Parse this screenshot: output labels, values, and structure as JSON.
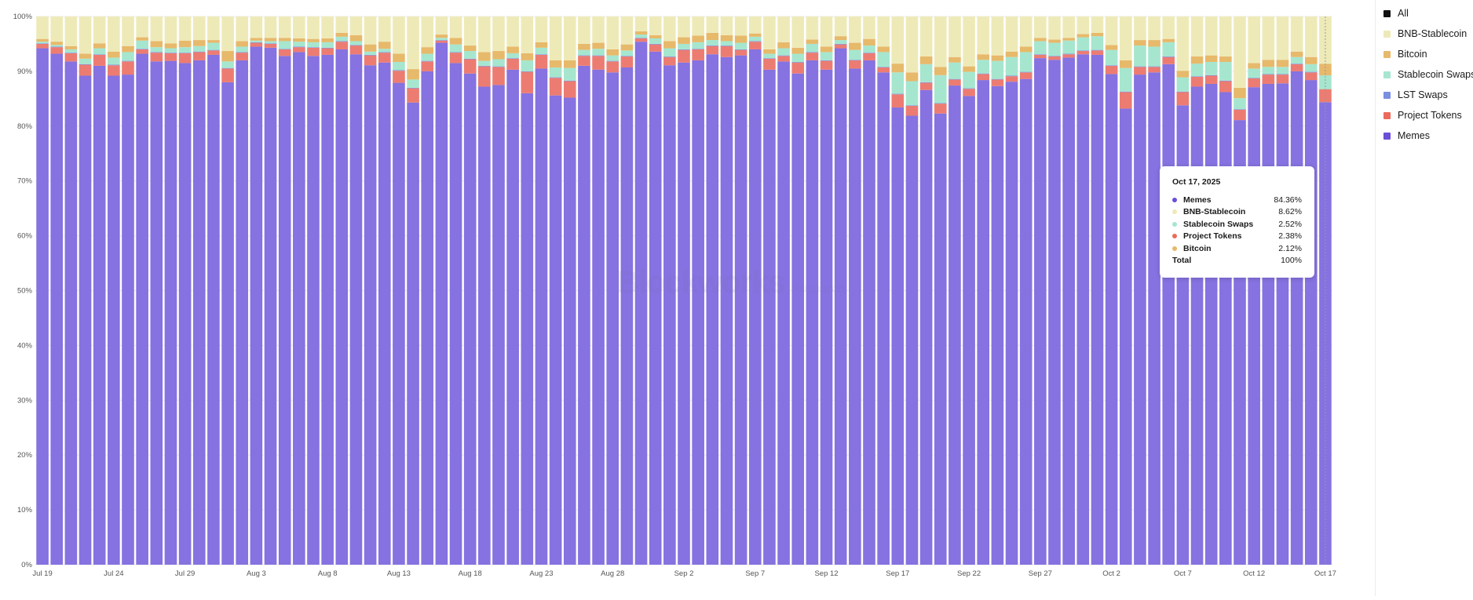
{
  "chart_data": {
    "type": "bar",
    "stacked": true,
    "normalized": true,
    "y_axis": {
      "min": 0,
      "max": 100,
      "ticks": [
        "0%",
        "10%",
        "20%",
        "30%",
        "40%",
        "50%",
        "60%",
        "70%",
        "80%",
        "90%",
        "100%"
      ]
    },
    "x_tick_labels": [
      "Jul 19",
      "Jul 24",
      "Jul 29",
      "Aug 3",
      "Aug 8",
      "Aug 13",
      "Aug 18",
      "Aug 23",
      "Aug 28",
      "Sep 2",
      "Sep 7",
      "Sep 12",
      "Sep 17",
      "Sep 22",
      "Sep 27",
      "Oct 2",
      "Oct 7",
      "Oct 12",
      "Oct 17"
    ],
    "x_tick_every": 5,
    "grid": true,
    "legend_placement": "right",
    "series": [
      {
        "name": "Memes",
        "color": "#8672e0",
        "values": [
          94.2,
          93.2,
          91.8,
          89.2,
          91.0,
          89.2,
          89.4,
          93.2,
          91.8,
          91.9,
          91.5,
          92.0,
          93.0,
          88.0,
          92.0,
          94.5,
          94.3,
          92.8,
          93.5,
          92.8,
          93.0,
          94.0,
          93.1,
          91.1,
          91.6,
          87.9,
          84.3,
          90.0,
          95.2,
          91.5,
          89.6,
          87.2,
          87.5,
          90.3,
          86.0,
          90.5,
          85.6,
          85.2,
          91.1,
          90.3,
          89.8,
          90.7,
          95.4,
          93.6,
          91.1,
          91.6,
          92.0,
          93.2,
          92.6,
          92.9,
          94.0,
          90.3,
          91.8,
          89.6,
          92.0,
          90.3,
          94.2,
          90.5,
          92.0,
          89.8,
          83.4,
          81.9,
          86.6,
          82.3,
          87.4,
          85.5,
          88.4,
          87.3,
          88.1,
          88.6,
          92.4,
          92.1,
          92.5,
          93.1,
          93.0,
          89.5,
          83.2,
          89.4,
          89.8,
          91.3,
          83.8,
          87.2,
          87.7,
          86.2,
          81.1,
          87.1,
          87.7,
          87.8,
          90.0,
          88.4,
          84.4
        ]
      },
      {
        "name": "Project Tokens",
        "color": "#ec7c72",
        "values": [
          0.8,
          1.2,
          1.5,
          2.0,
          2.0,
          1.9,
          2.4,
          0.8,
          1.6,
          1.4,
          1.8,
          1.5,
          0.8,
          2.5,
          1.4,
          0.7,
          0.7,
          1.2,
          0.9,
          1.5,
          1.2,
          1.4,
          1.6,
          1.8,
          1.8,
          2.2,
          2.6,
          1.8,
          0.4,
          1.9,
          2.6,
          3.7,
          3.3,
          2.0,
          3.9,
          2.5,
          3.2,
          3.0,
          1.8,
          2.5,
          2.0,
          2.0,
          0.6,
          1.3,
          1.5,
          2.3,
          2.0,
          1.5,
          2.0,
          1.0,
          1.4,
          2.0,
          1.0,
          2.0,
          1.4,
          1.6,
          0.7,
          1.5,
          1.3,
          0.9,
          2.4,
          1.8,
          1.3,
          1.8,
          1.1,
          1.3,
          1.1,
          1.2,
          1.0,
          1.2,
          0.6,
          0.6,
          0.6,
          0.6,
          0.8,
          1.5,
          3.0,
          1.4,
          1.0,
          1.3,
          2.4,
          1.8,
          1.5,
          2.0,
          1.9,
          1.6,
          1.7,
          1.6,
          1.3,
          1.4,
          2.38
        ]
      },
      {
        "name": "LST Swaps",
        "color": "#7b8fe0",
        "values": [
          0.1,
          0.1,
          0.1,
          0.1,
          0.1,
          0.1,
          0.1,
          0.1,
          0.1,
          0.1,
          0.1,
          0.1,
          0.1,
          0.1,
          0.1,
          0.1,
          0.1,
          0.1,
          0.1,
          0.1,
          0.1,
          0.1,
          0.1,
          0.1,
          0.1,
          0.1,
          0.1,
          0.1,
          0.1,
          0.1,
          0.1,
          0.1,
          0.1,
          0.1,
          0.1,
          0.1,
          0.1,
          0.1,
          0.1,
          0.1,
          0.1,
          0.1,
          0.1,
          0.1,
          0.1,
          0.1,
          0.1,
          0.1,
          0.1,
          0.1,
          0.1,
          0.1,
          0.1,
          0.1,
          0.1,
          0.1,
          0.1,
          0.1,
          0.1,
          0.1,
          0.1,
          0.1,
          0.1,
          0.1,
          0.1,
          0.1,
          0.1,
          0.1,
          0.1,
          0.1,
          0.1,
          0.1,
          0.1,
          0.1,
          0.1,
          0.1,
          0.1,
          0.1,
          0.1,
          0.1,
          0.1,
          0.1,
          0.1,
          0.1,
          0.1,
          0.1,
          0.1,
          0.1,
          0.1,
          0.1,
          0
        ]
      },
      {
        "name": "Stablecoin Swaps",
        "color": "#a6e6cf",
        "values": [
          0.3,
          0.3,
          0.6,
          1.0,
          1.1,
          1.3,
          1.6,
          1.5,
          0.9,
          0.8,
          1.0,
          1.0,
          1.3,
          1.2,
          1.0,
          0.3,
          0.4,
          1.4,
          0.9,
          0.9,
          1.0,
          0.8,
          0.7,
          0.6,
          0.6,
          1.5,
          1.5,
          1.3,
          0.4,
          1.4,
          1.4,
          0.9,
          1.3,
          0.9,
          2.0,
          1.2,
          1.8,
          2.3,
          1.0,
          1.2,
          1.0,
          1.0,
          0.6,
          1.0,
          1.5,
          1.0,
          1.2,
          1.0,
          0.8,
          1.2,
          0.8,
          0.8,
          1.3,
          1.5,
          1.5,
          1.5,
          0.7,
          1.8,
          1.3,
          2.7,
          3.9,
          4.4,
          3.3,
          5.1,
          3.0,
          3.0,
          2.5,
          3.3,
          3.4,
          3.6,
          2.4,
          2.4,
          2.4,
          2.4,
          2.5,
          2.8,
          4.3,
          3.8,
          3.6,
          2.6,
          2.6,
          2.3,
          2.4,
          3.4,
          2.0,
          1.7,
          1.3,
          1.3,
          1.2,
          1.4,
          2.52
        ]
      },
      {
        "name": "Bitcoin",
        "color": "#e7b96b",
        "values": [
          0.5,
          0.6,
          0.6,
          0.9,
          0.9,
          1.1,
          1.1,
          0.6,
          1.1,
          0.9,
          1.2,
          1.1,
          0.5,
          1.9,
          1.0,
          0.5,
          0.6,
          0.6,
          0.6,
          0.6,
          0.7,
          0.7,
          1.1,
          1.3,
          1.3,
          1.5,
          1.9,
          1.2,
          0.6,
          1.2,
          1.0,
          1.6,
          1.5,
          1.2,
          1.3,
          1.0,
          1.3,
          1.4,
          1.1,
          1.1,
          1.1,
          1.1,
          0.6,
          0.6,
          1.3,
          1.2,
          1.2,
          1.3,
          1.1,
          1.3,
          0.6,
          0.8,
          1.1,
          1.1,
          0.8,
          1.0,
          0.7,
          1.3,
          1.2,
          1.0,
          1.6,
          1.6,
          1.4,
          1.5,
          1.0,
          1.0,
          1.0,
          1.0,
          1.0,
          1.0,
          0.6,
          0.6,
          0.5,
          0.6,
          0.6,
          0.9,
          1.4,
          1.0,
          1.2,
          0.6,
          1.2,
          1.3,
          1.2,
          1.0,
          1.9,
          1.0,
          1.3,
          1.3,
          1.0,
          1.3,
          2.12
        ]
      },
      {
        "name": "BNB-Stablecoin",
        "color": "#eeeab8",
        "values": [
          4.1,
          4.6,
          5.4,
          6.8,
          4.9,
          6.4,
          5.4,
          3.8,
          4.5,
          4.9,
          4.4,
          4.3,
          4.3,
          6.3,
          4.5,
          3.9,
          3.9,
          3.9,
          4.0,
          4.1,
          4.0,
          3.0,
          3.4,
          5.1,
          4.6,
          6.8,
          9.6,
          5.6,
          3.3,
          3.9,
          5.3,
          6.5,
          6.3,
          5.5,
          6.7,
          4.7,
          8.0,
          8.0,
          5.0,
          4.8,
          6.0,
          5.1,
          2.7,
          3.4,
          4.5,
          3.8,
          3.5,
          3.0,
          3.4,
          3.5,
          3.1,
          6.0,
          4.7,
          5.7,
          4.2,
          5.5,
          3.6,
          4.8,
          4.1,
          5.5,
          8.6,
          10.2,
          7.3,
          9.2,
          7.4,
          9.1,
          6.9,
          7.1,
          6.4,
          5.5,
          3.9,
          4.2,
          3.9,
          3.2,
          3.0,
          5.2,
          8.0,
          4.3,
          4.3,
          4.1,
          9.9,
          7.3,
          7.1,
          7.3,
          13.0,
          8.5,
          7.9,
          7.9,
          6.4,
          7.4,
          8.62
        ]
      }
    ],
    "hover_index": 90,
    "tooltip": {
      "date": "Oct 17, 2025",
      "rows": [
        {
          "name": "Memes",
          "value": "84.36%",
          "color": "#6b4fd8"
        },
        {
          "name": "BNB-Stablecoin",
          "value": "8.62%",
          "color": "#eeeab8"
        },
        {
          "name": "Stablecoin Swaps",
          "value": "2.52%",
          "color": "#a6e6cf"
        },
        {
          "name": "Project Tokens",
          "value": "2.38%",
          "color": "#ec6a5c"
        },
        {
          "name": "Bitcoin",
          "value": "2.12%",
          "color": "#e7b96b"
        }
      ],
      "total_label": "Total",
      "total_value": "100%"
    }
  },
  "legend": [
    {
      "label": "All",
      "color": "#111111"
    },
    {
      "label": "BNB-Stablecoin",
      "color": "#eeeab8"
    },
    {
      "label": "Bitcoin",
      "color": "#e7b96b"
    },
    {
      "label": "Stablecoin Swaps",
      "color": "#a6e6cf"
    },
    {
      "label": "LST Swaps",
      "color": "#7b8fe0"
    },
    {
      "label": "Project Tokens",
      "color": "#ec6a5c"
    },
    {
      "label": "Memes",
      "color": "#6b4fd8"
    }
  ],
  "watermark": {
    "brand": "Blockworks",
    "sub": "Research"
  }
}
